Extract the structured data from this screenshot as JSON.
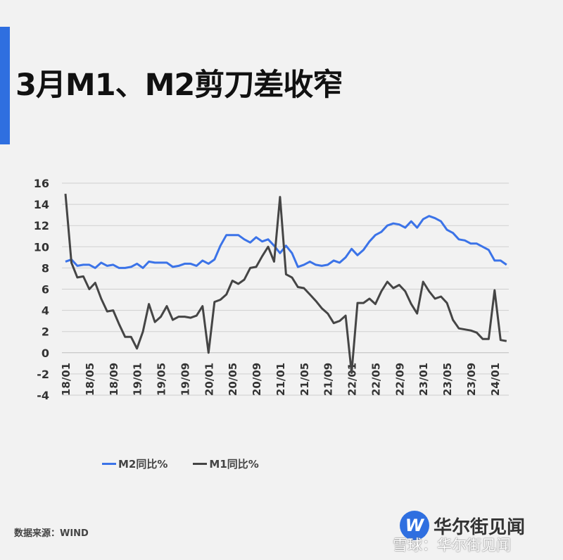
{
  "title": "3月M1、M2剪刀差收窄",
  "source": "数据来源：WIND",
  "logo": {
    "mark": "W",
    "name": "华尔街见闻"
  },
  "watermark": "雪球：华尔街见闻",
  "chart_data": {
    "type": "line",
    "title": "",
    "xlabel": "",
    "ylabel": "",
    "ylim": [
      -4,
      16
    ],
    "yticks": [
      16,
      14,
      12,
      10,
      8,
      6,
      4,
      2,
      0,
      -2,
      -4
    ],
    "xtick_labels": [
      "18/01",
      "18/05",
      "18/09",
      "19/01",
      "19/05",
      "19/09",
      "20/01",
      "20/05",
      "20/09",
      "21/01",
      "21/05",
      "21/09",
      "22/01",
      "22/05",
      "22/09",
      "23/01",
      "23/05",
      "23/09",
      "24/01"
    ],
    "x_start": "2018-01",
    "x_end": "2024-03",
    "grid": true,
    "legend_position": "bottom",
    "series": [
      {
        "name": "M2同比%",
        "color": "#3b73e8",
        "values": [
          8.6,
          8.8,
          8.2,
          8.3,
          8.3,
          8.0,
          8.5,
          8.2,
          8.3,
          8.0,
          8.0,
          8.1,
          8.4,
          8.0,
          8.6,
          8.5,
          8.5,
          8.5,
          8.1,
          8.2,
          8.4,
          8.4,
          8.2,
          8.7,
          8.4,
          8.8,
          10.1,
          11.1,
          11.1,
          11.1,
          10.7,
          10.4,
          10.9,
          10.5,
          10.7,
          10.1,
          9.4,
          10.1,
          9.4,
          8.1,
          8.3,
          8.6,
          8.3,
          8.2,
          8.3,
          8.7,
          8.5,
          9.0,
          9.8,
          9.2,
          9.7,
          10.5,
          11.1,
          11.4,
          12.0,
          12.2,
          12.1,
          11.8,
          12.4,
          11.8,
          12.6,
          12.9,
          12.7,
          12.4,
          11.6,
          11.3,
          10.7,
          10.6,
          10.3,
          10.3,
          10.0,
          9.7,
          8.7,
          8.7,
          8.3
        ]
      },
      {
        "name": "M1同比%",
        "color": "#454545",
        "values": [
          15.0,
          8.5,
          7.1,
          7.2,
          6.0,
          6.6,
          5.1,
          3.9,
          4.0,
          2.7,
          1.5,
          1.5,
          0.4,
          2.0,
          4.6,
          2.9,
          3.4,
          4.4,
          3.1,
          3.4,
          3.4,
          3.3,
          3.5,
          4.4,
          0.0,
          4.8,
          5.0,
          5.5,
          6.8,
          6.5,
          6.9,
          8.0,
          8.1,
          9.1,
          10.0,
          8.6,
          14.7,
          7.4,
          7.1,
          6.2,
          6.1,
          5.5,
          4.9,
          4.2,
          3.7,
          2.8,
          3.0,
          3.5,
          -1.9,
          4.7,
          4.7,
          5.1,
          4.6,
          5.8,
          6.7,
          6.1,
          6.4,
          5.8,
          4.6,
          3.7,
          6.7,
          5.8,
          5.1,
          5.3,
          4.7,
          3.1,
          2.3,
          2.2,
          2.1,
          1.9,
          1.3,
          1.3,
          5.9,
          1.2,
          1.1
        ]
      }
    ]
  }
}
